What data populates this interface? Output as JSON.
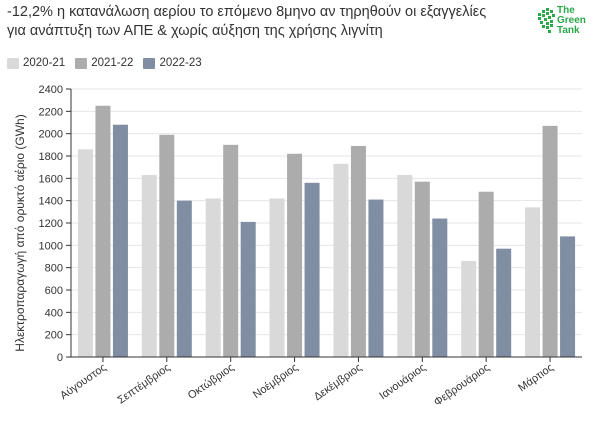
{
  "header": {
    "title_line1": "-12,2% η κατανάλωση αερίου το επόμενο 8μηνο αν τηρηθούν οι εξαγγελίες",
    "title_line2": "για ανάπτυξη των ΑΠΕ & χωρίς αύξηση της χρήσης λιγνίτη"
  },
  "logo": {
    "icon": "green-tank-logo-icon",
    "line1": "The",
    "line2": "Green",
    "line3": "Tank",
    "color": "#2aa84a"
  },
  "chart_data": {
    "type": "bar",
    "title": "-12,2% η κατανάλωση αερίου το επόμενο 8μηνο αν τηρηθούν οι εξαγγελίες για ανάπτυξη των ΑΠΕ & χωρίς αύξηση της χρήσης λιγνίτη",
    "categories": [
      "Αύγουστος",
      "Σεπτέμβριος",
      "Οκτώβριος",
      "Νοέμβριος",
      "Δεκέμβριος",
      "Ιανουάριος",
      "Φεβρουάριος",
      "Μάρτιος"
    ],
    "series": [
      {
        "name": "2020-21",
        "color": "#d9d9d9",
        "values": [
          1860,
          1630,
          1420,
          1420,
          1730,
          1630,
          860,
          1340
        ]
      },
      {
        "name": "2021-22",
        "color": "#acacac",
        "values": [
          2250,
          1990,
          1900,
          1820,
          1890,
          1570,
          1480,
          2070
        ]
      },
      {
        "name": "2022-23",
        "color": "#7f8ea3",
        "values": [
          2080,
          1400,
          1210,
          1560,
          1410,
          1240,
          970,
          1080
        ]
      }
    ],
    "xlabel": "",
    "ylabel": "Ηλεκτροπαραγωγή από ορυκτό αέριο (GWh)",
    "ylim": [
      0,
      2400
    ],
    "yticks": [
      0,
      200,
      400,
      600,
      800,
      1000,
      1200,
      1400,
      1600,
      1800,
      2000,
      2200,
      2400
    ],
    "grid": true,
    "legend": "top-left"
  }
}
